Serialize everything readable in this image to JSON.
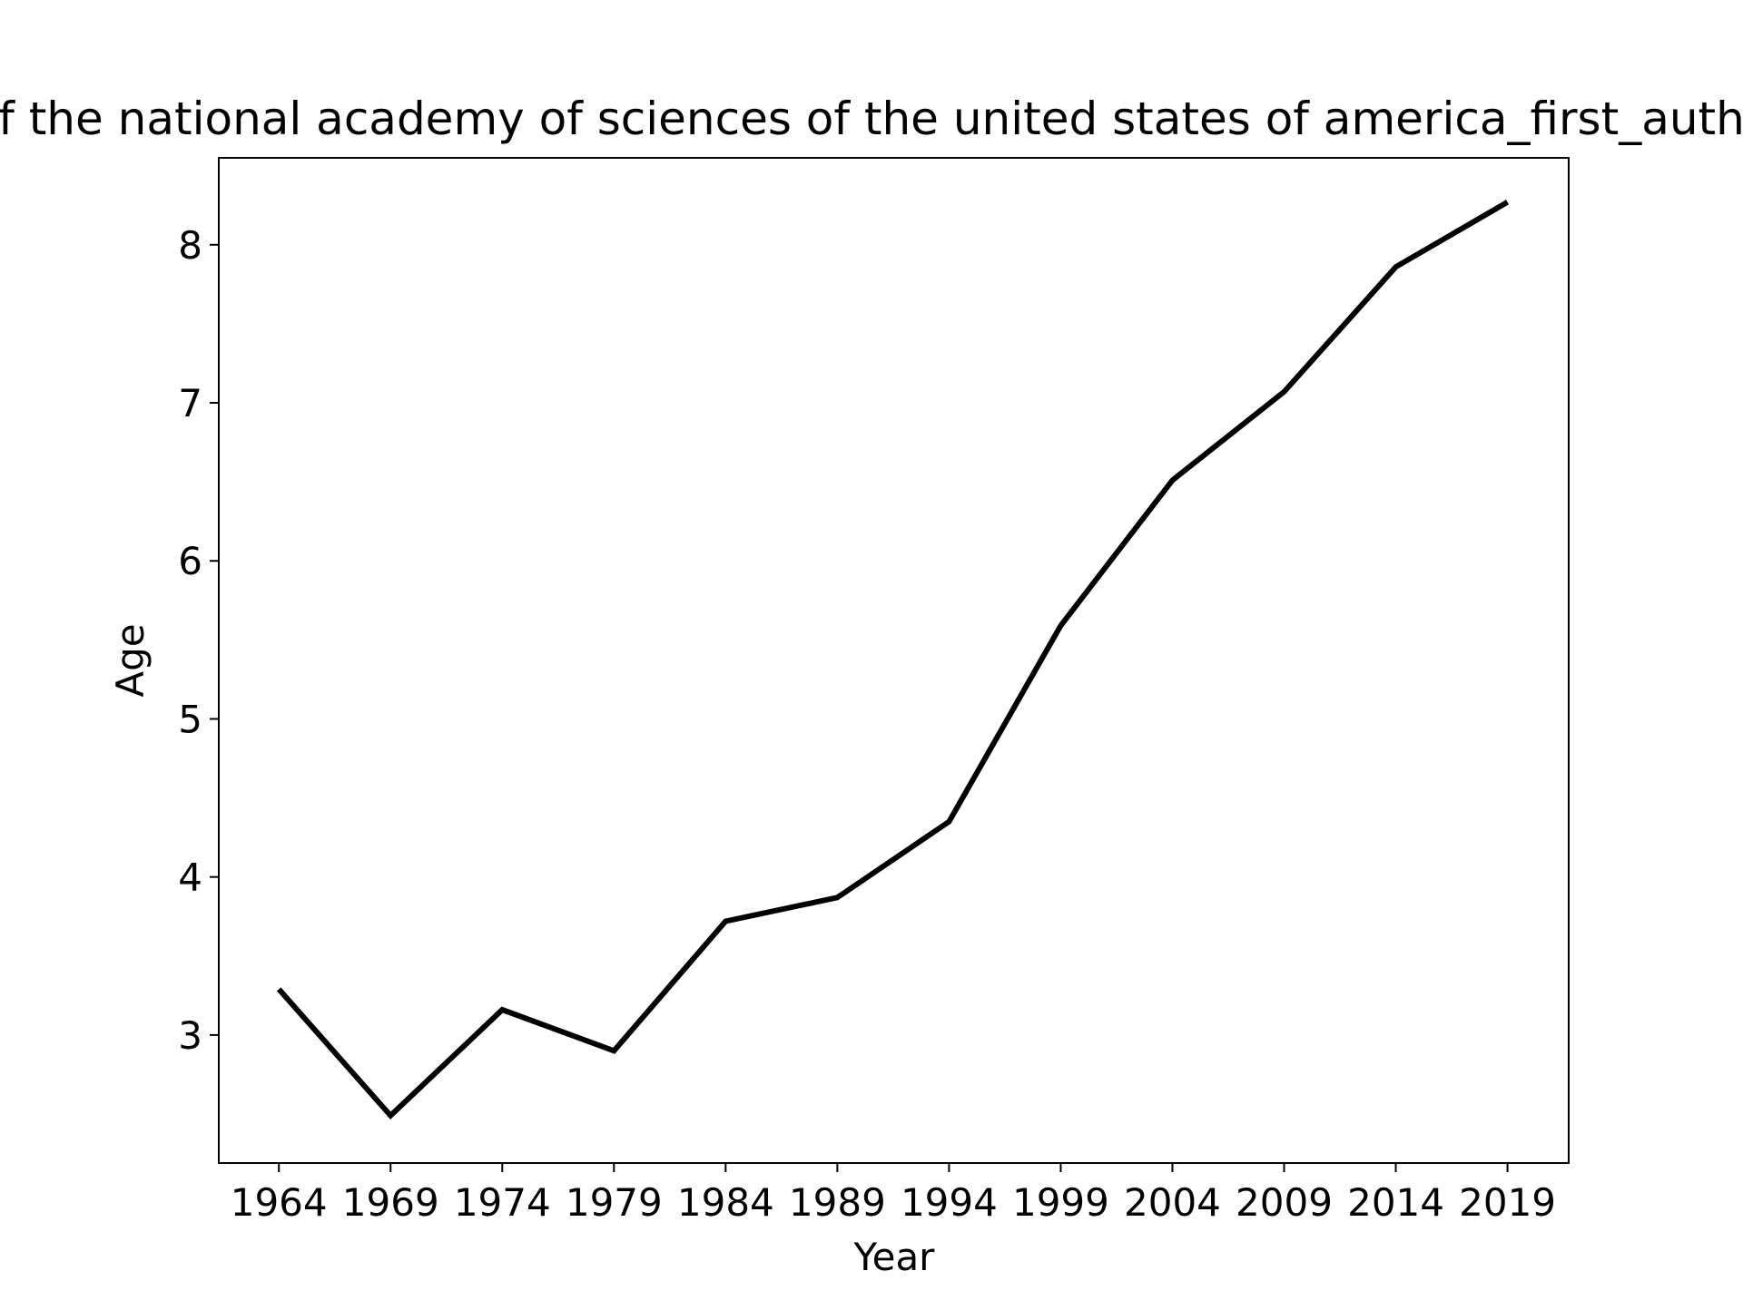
{
  "chart_data": {
    "type": "line",
    "title": "f the national academy of sciences of the united states of america_first_auth",
    "x_label": "Year",
    "y_label": "Age",
    "x": [
      1964,
      1969,
      1974,
      1979,
      1984,
      1989,
      1994,
      1999,
      2004,
      2009,
      2014,
      2019
    ],
    "series": [
      {
        "color": "#000000",
        "values": [
          3.29,
          2.49,
          3.16,
          2.9,
          3.72,
          3.87,
          4.35,
          5.59,
          6.51,
          7.07,
          7.86,
          8.27
        ]
      }
    ],
    "xlim": [
      1961.31,
      2021.74
    ],
    "xticks": [
      1964,
      1969,
      1974,
      1979,
      1984,
      1989,
      1994,
      1999,
      2004,
      2009,
      2014,
      2019
    ],
    "ylim": [
      2.19,
      8.55
    ],
    "yticks": [
      3,
      4,
      5,
      6,
      7,
      8
    ],
    "grid": false
  }
}
